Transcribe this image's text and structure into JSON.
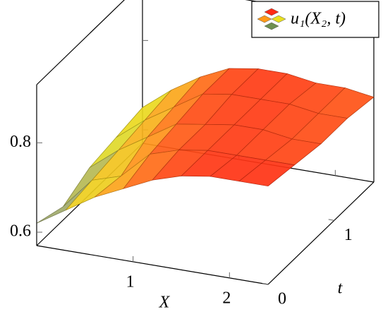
{
  "chart_data": {
    "type": "surface",
    "x_label": "X",
    "t_label": "t",
    "legend_label": "u₁(X₂, t)",
    "x": [
      0,
      0.3,
      0.6,
      0.9,
      1.2,
      1.5,
      1.8,
      2.1,
      2.4
    ],
    "t": [
      0,
      0.4,
      0.8,
      1.2,
      1.6
    ],
    "z": [
      [
        0.62,
        0.66,
        0.7,
        0.73,
        0.76,
        0.78,
        0.79,
        0.79,
        0.79
      ],
      [
        0.6,
        0.67,
        0.69,
        0.75,
        0.77,
        0.78,
        0.78,
        0.78,
        0.78
      ],
      [
        0.63,
        0.68,
        0.72,
        0.76,
        0.77,
        0.78,
        0.78,
        0.77,
        0.77
      ],
      [
        0.64,
        0.69,
        0.73,
        0.77,
        0.78,
        0.78,
        0.78,
        0.77,
        0.77
      ],
      [
        0.65,
        0.7,
        0.74,
        0.77,
        0.78,
        0.78,
        0.77,
        0.77,
        0.76
      ]
    ],
    "xlim": [
      0,
      2.4
    ],
    "tlim": [
      0,
      1.6
    ],
    "zlim": [
      0.57,
      0.93
    ],
    "xticks": [
      1,
      2
    ],
    "tticks": [
      0,
      1
    ],
    "zticks": [
      0.6,
      0.8
    ],
    "colormap": [
      "#3a5bd8",
      "#e8e020",
      "#ff9a1a",
      "#ff2a14"
    ]
  }
}
